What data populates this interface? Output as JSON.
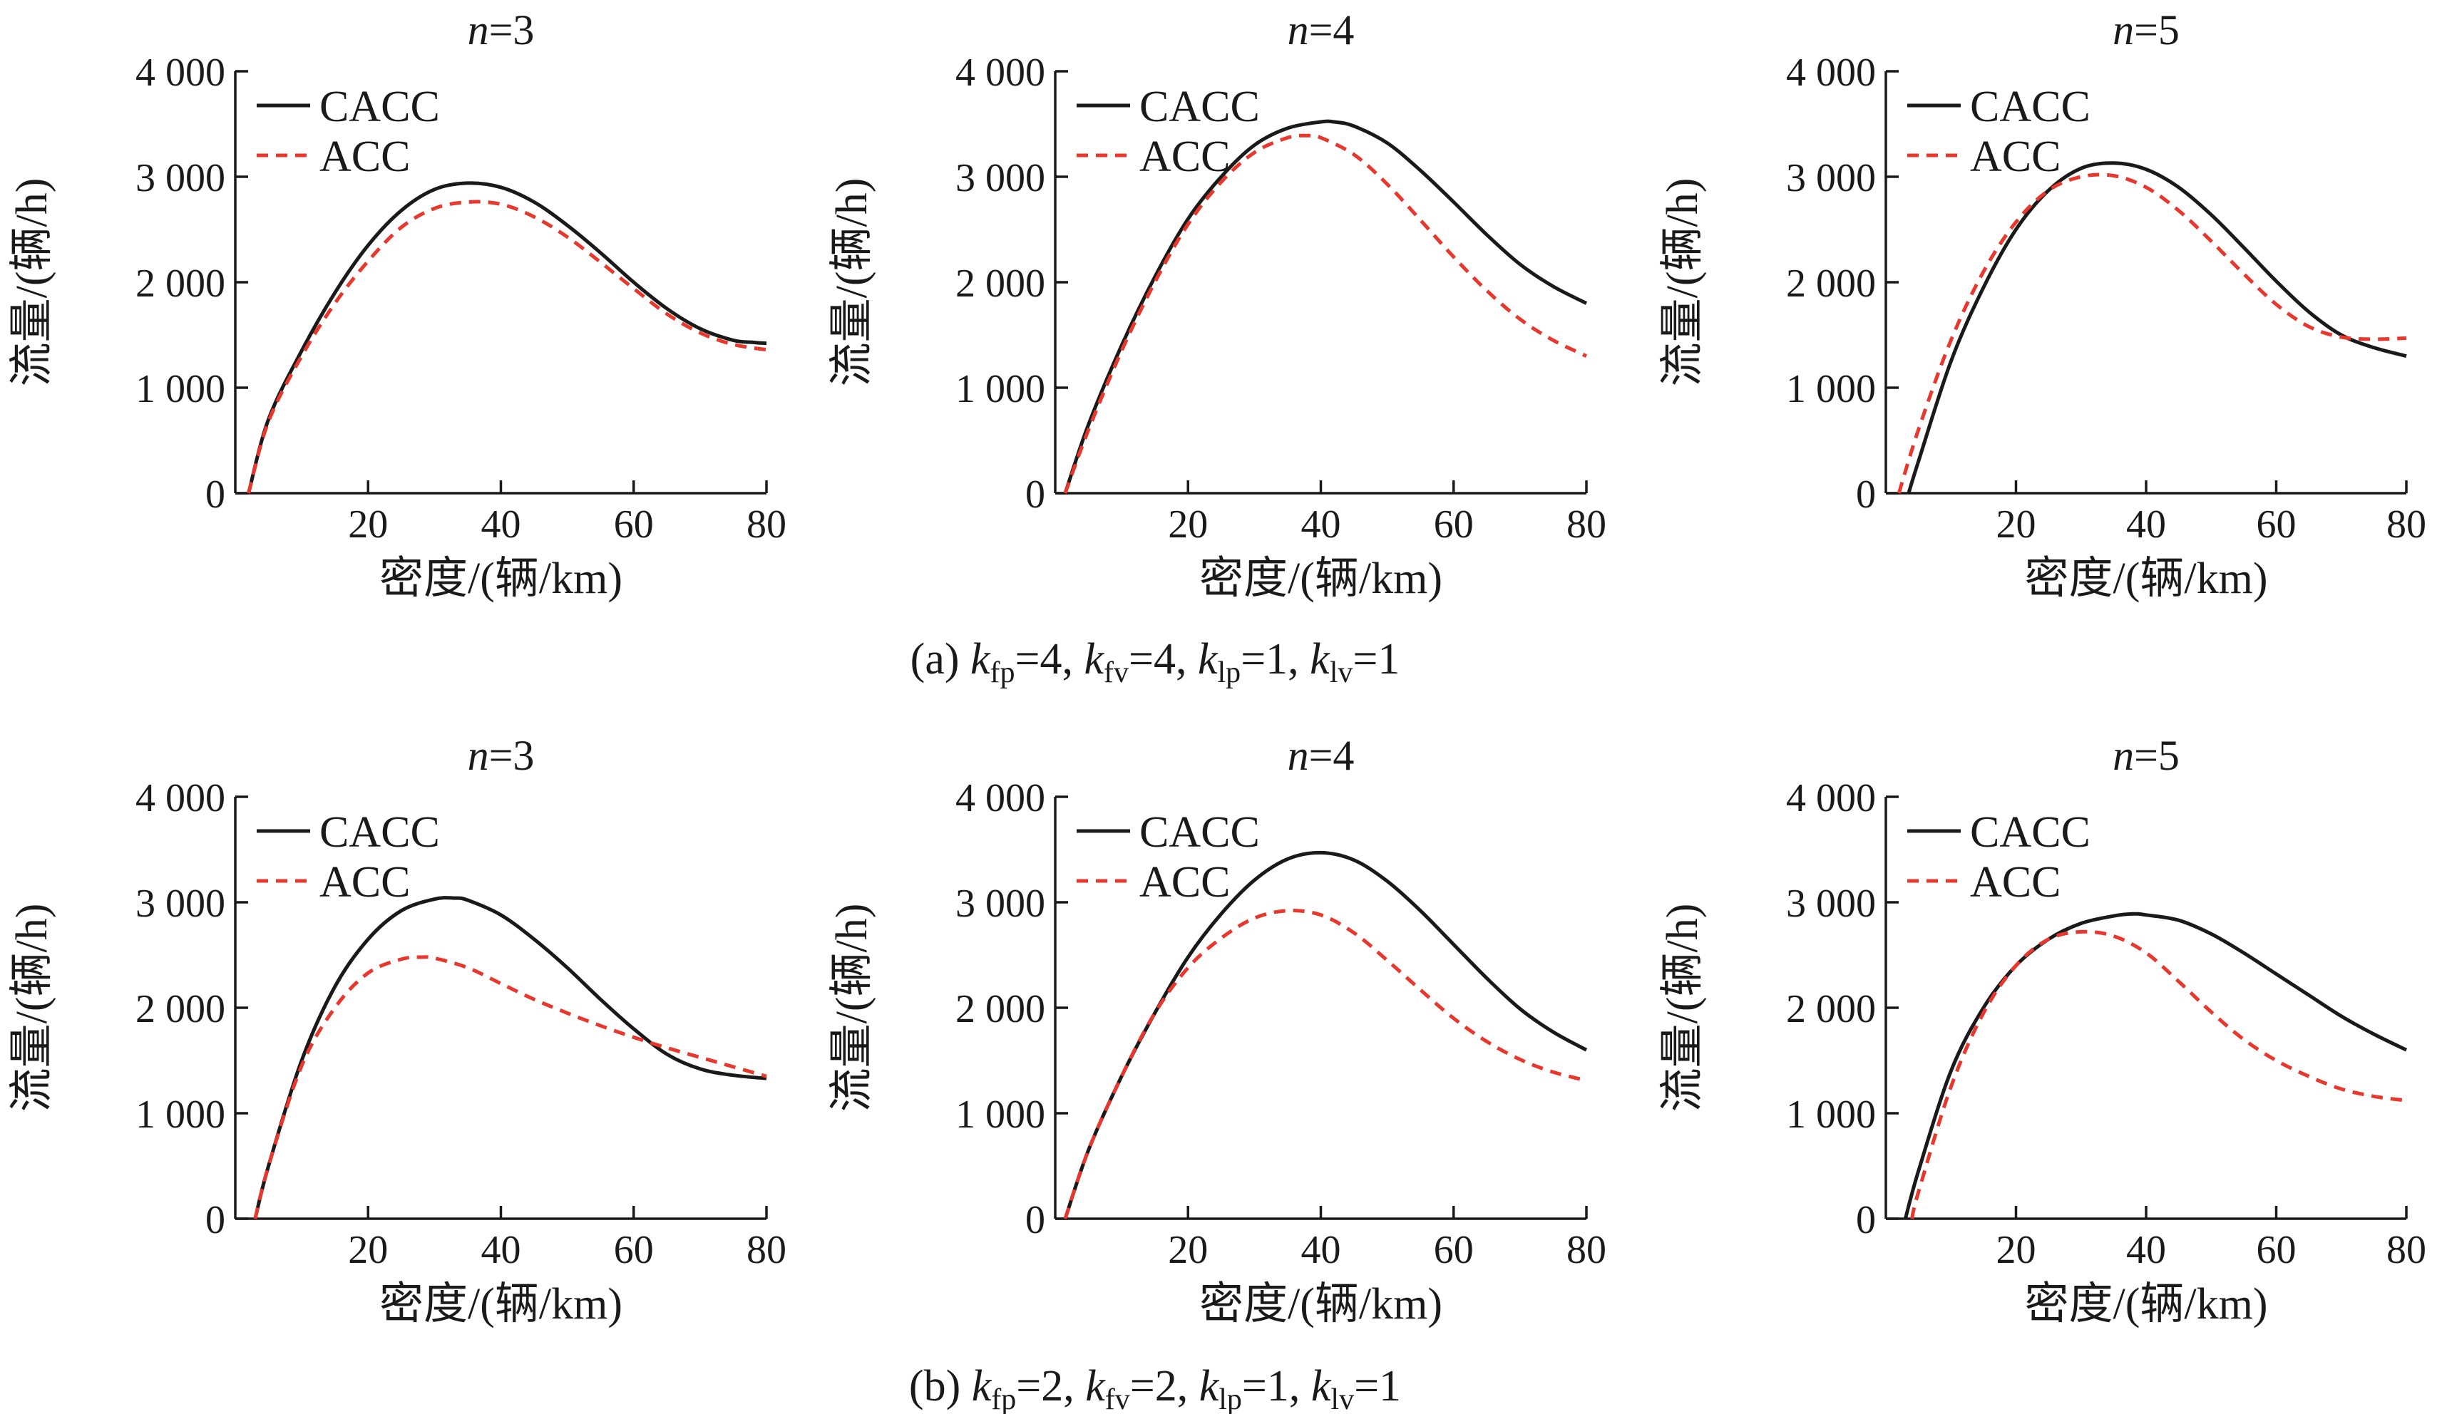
{
  "figure": {
    "captions": [
      {
        "prefix": "(a) ",
        "params": [
          {
            "k": "fp",
            "v": "4"
          },
          {
            "k": "fv",
            "v": "4"
          },
          {
            "k": "lp",
            "v": "1"
          },
          {
            "k": "lv",
            "v": "1"
          }
        ]
      },
      {
        "prefix": "(b) ",
        "params": [
          {
            "k": "fp",
            "v": "2"
          },
          {
            "k": "fv",
            "v": "2"
          },
          {
            "k": "lp",
            "v": "1"
          },
          {
            "k": "lv",
            "v": "1"
          }
        ]
      }
    ]
  },
  "colors": {
    "cacc": "#1a1a1a",
    "acc": "#e8372c",
    "axis": "#1a1a1a"
  },
  "chart_data": [
    {
      "type": "line",
      "row": 0,
      "col": 0,
      "title_var": "n",
      "title_val": "=3",
      "xlabel": "密度/(辆/km)",
      "ylabel": "流量/(辆/h)",
      "xlim": [
        0,
        80
      ],
      "ylim": [
        0,
        4000
      ],
      "xticks": [
        20,
        40,
        60,
        80
      ],
      "yticks": [
        0,
        1000,
        2000,
        3000,
        4000
      ],
      "ytick_labels": [
        "0",
        "1 000",
        "2 000",
        "3 000",
        "4 000"
      ],
      "legend": "top-left",
      "series": [
        {
          "name": "CACC",
          "style": "solid",
          "x": [
            2,
            5,
            10,
            15,
            20,
            25,
            30,
            35,
            40,
            45,
            50,
            55,
            60,
            65,
            70,
            75,
            78,
            80
          ],
          "y": [
            0,
            700,
            1350,
            1900,
            2350,
            2680,
            2880,
            2940,
            2900,
            2760,
            2540,
            2280,
            2000,
            1750,
            1560,
            1450,
            1430,
            1420
          ]
        },
        {
          "name": "ACC",
          "style": "dashed",
          "x": [
            2,
            5,
            10,
            15,
            20,
            25,
            30,
            35,
            40,
            45,
            50,
            55,
            60,
            65,
            70,
            75,
            80
          ],
          "y": [
            0,
            680,
            1300,
            1800,
            2200,
            2520,
            2700,
            2760,
            2740,
            2620,
            2430,
            2190,
            1940,
            1700,
            1520,
            1410,
            1360
          ]
        }
      ]
    },
    {
      "type": "line",
      "row": 0,
      "col": 1,
      "title_var": "n",
      "title_val": "=4",
      "xlabel": "密度/(辆/km)",
      "ylabel": "流量/(辆/h)",
      "xlim": [
        0,
        80
      ],
      "ylim": [
        0,
        4000
      ],
      "xticks": [
        20,
        40,
        60,
        80
      ],
      "yticks": [
        0,
        1000,
        2000,
        3000,
        4000
      ],
      "ytick_labels": [
        "0",
        "1 000",
        "2 000",
        "3 000",
        "4 000"
      ],
      "legend": "top-left",
      "series": [
        {
          "name": "CACC",
          "style": "solid",
          "x": [
            1.5,
            5,
            10,
            15,
            20,
            25,
            30,
            35,
            40,
            42,
            45,
            50,
            55,
            60,
            65,
            70,
            75,
            80
          ],
          "y": [
            0,
            650,
            1400,
            2050,
            2600,
            3000,
            3300,
            3460,
            3520,
            3520,
            3480,
            3320,
            3060,
            2760,
            2450,
            2170,
            1960,
            1800
          ]
        },
        {
          "name": "ACC",
          "style": "dashed",
          "x": [
            1.5,
            5,
            10,
            15,
            20,
            25,
            30,
            35,
            38,
            40,
            45,
            50,
            55,
            60,
            65,
            70,
            75,
            80
          ],
          "y": [
            0,
            600,
            1350,
            2000,
            2550,
            2950,
            3230,
            3370,
            3390,
            3370,
            3210,
            2930,
            2590,
            2240,
            1920,
            1650,
            1450,
            1300
          ]
        }
      ]
    },
    {
      "type": "line",
      "row": 0,
      "col": 2,
      "title_var": "n",
      "title_val": "=5",
      "xlabel": "密度/(辆/km)",
      "ylabel": "流量/(辆/h)",
      "xlim": [
        0,
        80
      ],
      "ylim": [
        0,
        4000
      ],
      "xticks": [
        20,
        40,
        60,
        80
      ],
      "yticks": [
        0,
        1000,
        2000,
        3000,
        4000
      ],
      "ytick_labels": [
        "0",
        "1 000",
        "2 000",
        "3 000",
        "4 000"
      ],
      "legend": "top-left",
      "series": [
        {
          "name": "CACC",
          "style": "solid",
          "x": [
            3.5,
            5,
            10,
            15,
            20,
            25,
            30,
            35,
            40,
            45,
            50,
            55,
            60,
            65,
            70,
            75,
            80
          ],
          "y": [
            0,
            300,
            1250,
            1950,
            2500,
            2870,
            3080,
            3130,
            3070,
            2900,
            2640,
            2330,
            2010,
            1720,
            1500,
            1380,
            1300
          ]
        },
        {
          "name": "ACC",
          "style": "dashed",
          "x": [
            2,
            5,
            10,
            15,
            20,
            25,
            30,
            35,
            40,
            45,
            50,
            55,
            60,
            65,
            70,
            75,
            80
          ],
          "y": [
            0,
            600,
            1450,
            2100,
            2570,
            2870,
            3000,
            3010,
            2900,
            2680,
            2390,
            2080,
            1790,
            1580,
            1480,
            1460,
            1470
          ]
        }
      ]
    },
    {
      "type": "line",
      "row": 1,
      "col": 0,
      "title_var": "n",
      "title_val": "=3",
      "xlabel": "密度/(辆/km)",
      "ylabel": "流量/(辆/h)",
      "xlim": [
        0,
        80
      ],
      "ylim": [
        0,
        4000
      ],
      "xticks": [
        20,
        40,
        60,
        80
      ],
      "yticks": [
        0,
        1000,
        2000,
        3000,
        4000
      ],
      "ytick_labels": [
        "0",
        "1 000",
        "2 000",
        "3 000",
        "4 000"
      ],
      "legend": "top-left",
      "series": [
        {
          "name": "CACC",
          "style": "solid",
          "x": [
            3,
            5,
            10,
            15,
            20,
            25,
            30,
            33,
            35,
            40,
            45,
            50,
            55,
            60,
            65,
            70,
            75,
            80
          ],
          "y": [
            0,
            500,
            1500,
            2200,
            2650,
            2920,
            3030,
            3040,
            3020,
            2880,
            2650,
            2380,
            2080,
            1800,
            1560,
            1420,
            1360,
            1330
          ]
        },
        {
          "name": "ACC",
          "style": "dashed",
          "x": [
            3,
            5,
            10,
            15,
            20,
            25,
            28,
            30,
            35,
            40,
            45,
            50,
            55,
            60,
            65,
            70,
            75,
            80
          ],
          "y": [
            0,
            500,
            1450,
            2000,
            2330,
            2460,
            2480,
            2470,
            2380,
            2230,
            2080,
            1950,
            1830,
            1720,
            1620,
            1530,
            1440,
            1350
          ]
        }
      ]
    },
    {
      "type": "line",
      "row": 1,
      "col": 1,
      "title_var": "n",
      "title_val": "=4",
      "xlabel": "密度/(辆/km)",
      "ylabel": "流量/(辆/h)",
      "xlim": [
        0,
        80
      ],
      "ylim": [
        0,
        4000
      ],
      "xticks": [
        20,
        40,
        60,
        80
      ],
      "yticks": [
        0,
        1000,
        2000,
        3000,
        4000
      ],
      "ytick_labels": [
        "0",
        "1 000",
        "2 000",
        "3 000",
        "4 000"
      ],
      "legend": "top-left",
      "series": [
        {
          "name": "CACC",
          "style": "solid",
          "x": [
            1.5,
            5,
            10,
            15,
            20,
            25,
            30,
            35,
            40,
            45,
            50,
            55,
            60,
            65,
            70,
            75,
            80
          ],
          "y": [
            0,
            650,
            1350,
            1950,
            2480,
            2890,
            3210,
            3410,
            3470,
            3400,
            3200,
            2920,
            2600,
            2280,
            1990,
            1770,
            1600
          ]
        },
        {
          "name": "ACC",
          "style": "dashed",
          "x": [
            1.5,
            5,
            10,
            15,
            20,
            25,
            30,
            35,
            40,
            45,
            50,
            55,
            60,
            65,
            70,
            75,
            80
          ],
          "y": [
            0,
            650,
            1350,
            1950,
            2380,
            2660,
            2850,
            2920,
            2880,
            2710,
            2450,
            2170,
            1900,
            1680,
            1510,
            1390,
            1310
          ]
        }
      ]
    },
    {
      "type": "line",
      "row": 1,
      "col": 2,
      "title_var": "n",
      "title_val": "=5",
      "xlabel": "密度/(辆/km)",
      "ylabel": "流量/(辆/h)",
      "xlim": [
        0,
        80
      ],
      "ylim": [
        0,
        4000
      ],
      "xticks": [
        20,
        40,
        60,
        80
      ],
      "yticks": [
        0,
        1000,
        2000,
        3000,
        4000
      ],
      "ytick_labels": [
        "0",
        "1 000",
        "2 000",
        "3 000",
        "4 000"
      ],
      "legend": "top-left",
      "series": [
        {
          "name": "CACC",
          "style": "solid",
          "x": [
            3,
            5,
            10,
            15,
            20,
            25,
            30,
            35,
            38,
            40,
            45,
            50,
            55,
            60,
            65,
            70,
            75,
            80
          ],
          "y": [
            0,
            450,
            1400,
            2000,
            2400,
            2650,
            2800,
            2870,
            2890,
            2880,
            2830,
            2700,
            2520,
            2320,
            2120,
            1920,
            1750,
            1600
          ]
        },
        {
          "name": "ACC",
          "style": "dashed",
          "x": [
            4,
            5,
            10,
            15,
            20,
            25,
            30,
            35,
            40,
            45,
            50,
            55,
            60,
            65,
            70,
            75,
            80
          ],
          "y": [
            0,
            250,
            1250,
            1950,
            2400,
            2650,
            2720,
            2680,
            2520,
            2250,
            1960,
            1700,
            1500,
            1350,
            1230,
            1160,
            1120
          ]
        }
      ]
    }
  ]
}
